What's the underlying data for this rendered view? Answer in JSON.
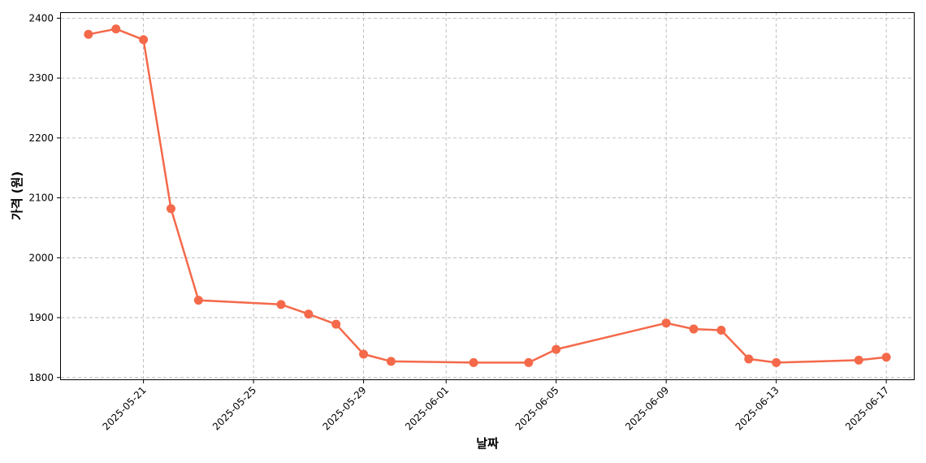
{
  "chart_data": {
    "type": "line",
    "title": "",
    "xlabel": "날짜",
    "ylabel": "가격 (원)",
    "grid": true,
    "color": "#f4694a",
    "ylim": [
      1797,
      2410
    ],
    "xlim": [
      "2025-05-18",
      "2025-06-18"
    ],
    "x_ticks": [
      "2025-05-21",
      "2025-05-25",
      "2025-05-29",
      "2025-06-01",
      "2025-06-05",
      "2025-06-09",
      "2025-06-13",
      "2025-06-17"
    ],
    "y_ticks": [
      1800,
      1900,
      2000,
      2100,
      2200,
      2300,
      2400
    ],
    "series": [
      {
        "name": "",
        "x": [
          "2025-05-19",
          "2025-05-20",
          "2025-05-21",
          "2025-05-22",
          "2025-05-23",
          "2025-05-26",
          "2025-05-27",
          "2025-05-28",
          "2025-05-29",
          "2025-05-30",
          "2025-06-02",
          "2025-06-04",
          "2025-06-05",
          "2025-06-09",
          "2025-06-10",
          "2025-06-11",
          "2025-06-12",
          "2025-06-13",
          "2025-06-16",
          "2025-06-17"
        ],
        "values": [
          2373,
          2382,
          2364,
          2082,
          1929,
          1922,
          1906,
          1889,
          1839,
          1827,
          1825,
          1825,
          1847,
          1891,
          1881,
          1879,
          1831,
          1825,
          1829,
          1834
        ]
      }
    ]
  }
}
